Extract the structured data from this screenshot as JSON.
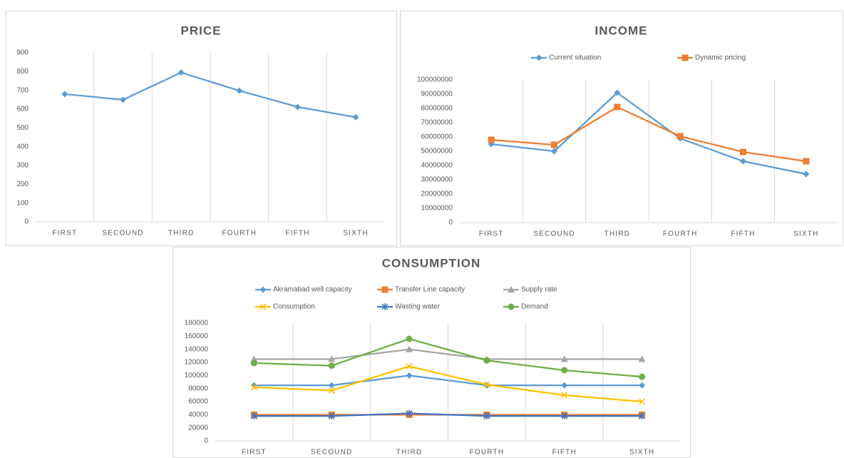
{
  "chart_data": [
    {
      "type": "line",
      "title": "PRICE",
      "categories": [
        "FIRST",
        "SECOUND",
        "THIRD",
        "FOURTH",
        "FIFTH",
        "SIXTH"
      ],
      "series": [
        {
          "name": "Price",
          "color": "#5b9bd5",
          "marker": "diamond",
          "values": [
            680,
            650,
            795,
            698,
            612,
            557
          ]
        }
      ],
      "legend": false,
      "grid": "vertical",
      "ylim": [
        0,
        900
      ],
      "yticks": [
        0,
        100,
        200,
        300,
        400,
        500,
        600,
        700,
        800,
        900
      ]
    },
    {
      "type": "line",
      "title": "INCOME",
      "categories": [
        "FIRST",
        "SECOUND",
        "THIRD",
        "FOURTH",
        "FIFTH",
        "SIXTH"
      ],
      "series": [
        {
          "name": "Current situation",
          "color": "#5b9bd5",
          "marker": "diamond",
          "values": [
            55000000,
            50000000,
            91000000,
            59000000,
            43000000,
            34000000
          ]
        },
        {
          "name": "Dynamic pricing",
          "color": "#ed7d31",
          "marker": "square",
          "values": [
            58000000,
            54500000,
            81000000,
            60500000,
            49500000,
            43000000
          ]
        }
      ],
      "legend": "top",
      "grid": "vertical",
      "ylim": [
        0,
        100000000
      ],
      "yticks": [
        0,
        10000000,
        20000000,
        30000000,
        40000000,
        50000000,
        60000000,
        70000000,
        80000000,
        90000000,
        100000000
      ]
    },
    {
      "type": "line",
      "title": "CONSUMPTION",
      "categories": [
        "FIRST",
        "SECOUND",
        "THIRD",
        "FOURTH",
        "FIFTH",
        "SIXTH"
      ],
      "series": [
        {
          "name": "Akramabad well capacity",
          "color": "#5b9bd5",
          "marker": "diamond",
          "values": [
            85000,
            85000,
            100000,
            85000,
            85000,
            85000
          ]
        },
        {
          "name": "Transfer Line capacity",
          "color": "#ed7d31",
          "marker": "square",
          "values": [
            40000,
            40000,
            40000,
            40000,
            40000,
            40000
          ]
        },
        {
          "name": "Supply rate",
          "color": "#a5a5a5",
          "marker": "triangle",
          "values": [
            125000,
            125000,
            140000,
            125000,
            125000,
            125000
          ]
        },
        {
          "name": "Consumption",
          "color": "#ffc000",
          "marker": "x",
          "values": [
            82000,
            77000,
            114000,
            86000,
            70000,
            60000
          ]
        },
        {
          "name": "Wasting water",
          "color": "#4472c4",
          "marker": "star",
          "values": [
            38000,
            38000,
            42000,
            38000,
            38000,
            38000
          ]
        },
        {
          "name": "Demand",
          "color": "#70ad47",
          "marker": "circle",
          "values": [
            119000,
            115000,
            156000,
            123000,
            108000,
            98000
          ]
        }
      ],
      "legend": "top",
      "grid": "vertical",
      "ylim": [
        0,
        180000
      ],
      "yticks": [
        0,
        20000,
        40000,
        60000,
        80000,
        100000,
        120000,
        140000,
        160000,
        180000
      ]
    }
  ]
}
